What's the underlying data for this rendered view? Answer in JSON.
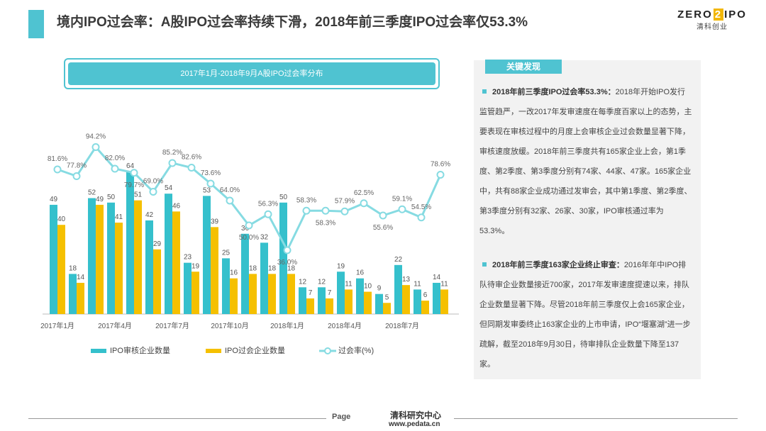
{
  "header": {
    "title": "境内IPO过会率：A股IPO过会率持续下滑，2018年前三季度IPO过会率仅53.3%",
    "logo_main_left": "ZERO",
    "logo_main_box": "2",
    "logo_main_right": "IPO",
    "logo_sub": "清科创业"
  },
  "chart_data": {
    "type": "bar",
    "title": "2017年1月-2018年9月A股IPO过会率分布",
    "categories": [
      "2017年1月",
      "2017年2月",
      "2017年3月",
      "2017年4月",
      "2017年5月",
      "2017年6月",
      "2017年7月",
      "2017年8月",
      "2017年9月",
      "2017年10月",
      "2017年11月",
      "2017年12月",
      "2018年1月",
      "2018年2月",
      "2018年3月",
      "2018年4月",
      "2018年5月",
      "2018年6月",
      "2018年7月",
      "2018年8月",
      "2018年9月"
    ],
    "x_tick_labels": [
      "2017年1月",
      "2017年4月",
      "2017年7月",
      "2017年10月",
      "2018年1月",
      "2018年4月",
      "2018年7月"
    ],
    "x_tick_indices": [
      0,
      3,
      6,
      9,
      12,
      15,
      18
    ],
    "series": [
      {
        "name": "IPO审核企业数量",
        "type": "bar",
        "color": "#35c0cc",
        "values": [
          49,
          18,
          52,
          50,
          64,
          42,
          54,
          23,
          53,
          25,
          36,
          32,
          50,
          12,
          12,
          19,
          16,
          9,
          22,
          11,
          14
        ]
      },
      {
        "name": "IPO过会企业数量",
        "type": "bar",
        "color": "#f5c000",
        "values": [
          40,
          14,
          49,
          41,
          51,
          29,
          46,
          19,
          39,
          16,
          18,
          18,
          18,
          7,
          7,
          11,
          10,
          5,
          13,
          6,
          11
        ]
      },
      {
        "name": "过会率(%)",
        "type": "line",
        "color": "#86dbe2",
        "values": [
          81.6,
          77.8,
          94.2,
          82.0,
          79.7,
          69.0,
          85.2,
          82.6,
          73.6,
          64.0,
          50.0,
          56.3,
          36.0,
          58.3,
          58.3,
          57.9,
          62.5,
          55.6,
          59.1,
          54.5,
          78.6
        ],
        "labels": [
          "81.6%",
          "77.8%",
          "94.2%",
          "82.0%",
          "79.7%",
          "69.0%",
          "85.2%",
          "82.6%",
          "73.6%",
          "64.0%",
          "50.0%",
          "56.3%",
          "36.0%",
          "58.3%",
          "58.3%",
          "57.9%",
          "62.5%",
          "55.6%",
          "59.1%",
          "54.5%",
          "78.6%"
        ]
      }
    ],
    "ylim_bar": [
      0,
      90
    ],
    "ylim_rate": [
      0,
      120
    ],
    "legend": [
      "IPO审核企业数量",
      "IPO过会企业数量",
      "过会率(%)"
    ],
    "legend_position": "bottom"
  },
  "panel": {
    "heading": "关键发现",
    "item1_title": "2018年前三季度IPO过会率53.3%：",
    "item1_body": "2018年开始IPO发行监管趋严，一改2017年发审速度在每季度百家以上的态势，主要表现在审核过程中的月度上会审核企业过会数量显著下降，审核速度放缓。2018年前三季度共有165家企业上会，第1季度、第2季度、第3季度分别有74家、44家、47家。165家企业中，共有88家企业成功通过发审会，其中第1季度、第2季度、第3季度分别有32家、26家、30家，IPO审核通过率为53.3%。",
    "item2_title": "2018年前三季度163家企业终止审查：",
    "item2_body": "2016年年中IPO排队待审企业数量接近700家，2017年发审速度提速以来，排队企业数量显著下降。尽管2018年前三季度仅上会165家企业，但同期发审委终止163家企业的上市申请，IPO“堰塞湖”进一步疏解，截至2018年9月30日，待审排队企业数量下降至137家。"
  },
  "footer": {
    "page": "Page",
    "center": "清科研究中心",
    "url": "www.pedata.cn"
  }
}
